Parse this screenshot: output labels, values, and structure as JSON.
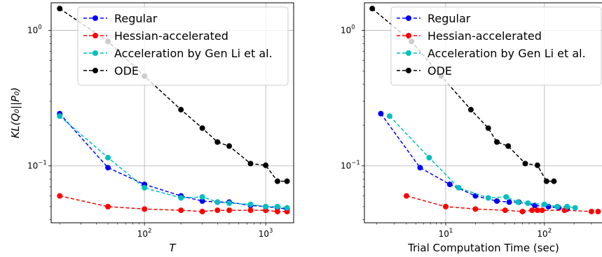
{
  "chart_data": [
    {
      "type": "line",
      "xlabel": "T",
      "ylabel": "KL(Q₀||P₀)",
      "xscale": "log",
      "yscale": "log",
      "xlim": [
        17,
        1700
      ],
      "ylim": [
        0.038,
        1.6
      ],
      "x_ticks": [
        {
          "value": 100,
          "base": "10",
          "exp": "2"
        },
        {
          "value": 1000,
          "base": "10",
          "exp": "3"
        }
      ],
      "y_ticks": [
        {
          "value": 1,
          "base": "10",
          "exp": "0"
        },
        {
          "value": 0.1,
          "base": "10",
          "exp": "−1"
        }
      ],
      "grid": true,
      "legend_position": "top-right",
      "series": [
        {
          "name": "Regular",
          "color": "#0000ff",
          "x": [
            20,
            50,
            100,
            200,
            300,
            400,
            500,
            750,
            1000,
            1250,
            1500
          ],
          "y": [
            0.243,
            0.097,
            0.073,
            0.06,
            0.055,
            0.054,
            0.054,
            0.051,
            0.05,
            0.049,
            0.048
          ]
        },
        {
          "name": "Hessian-accelerated",
          "color": "#ff0000",
          "x": [
            20,
            50,
            100,
            200,
            300,
            400,
            500,
            750,
            1000,
            1250,
            1500
          ],
          "y": [
            0.06,
            0.05,
            0.048,
            0.047,
            0.046,
            0.047,
            0.047,
            0.047,
            0.047,
            0.046,
            0.046
          ]
        },
        {
          "name": "Acceleration by Gen Li et al.",
          "color": "#00bfbf",
          "x": [
            20,
            50,
            100,
            200,
            300,
            400,
            500,
            750,
            1000,
            1250,
            1500
          ],
          "y": [
            0.233,
            0.115,
            0.069,
            0.058,
            0.059,
            0.054,
            0.053,
            0.052,
            0.05,
            0.05,
            0.049
          ]
        },
        {
          "name": "ODE",
          "color": "#000000",
          "x": [
            20,
            50,
            100,
            200,
            300,
            400,
            500,
            750,
            1000,
            1250,
            1500
          ],
          "y": [
            1.45,
            0.83,
            0.46,
            0.26,
            0.19,
            0.15,
            0.14,
            0.104,
            0.101,
            0.077,
            0.077
          ]
        }
      ]
    },
    {
      "type": "line",
      "xlabel": "Trial Computation Time (sec)",
      "ylabel": "",
      "xscale": "log",
      "yscale": "log",
      "xlim": [
        1.5,
        390
      ],
      "ylim": [
        0.038,
        1.6
      ],
      "x_ticks": [
        {
          "value": 10,
          "base": "10",
          "exp": "1"
        },
        {
          "value": 100,
          "base": "10",
          "exp": "2"
        }
      ],
      "y_ticks": [
        {
          "value": 1,
          "base": "10",
          "exp": "0"
        },
        {
          "value": 0.1,
          "base": "10",
          "exp": "−1"
        }
      ],
      "grid": true,
      "legend_position": "top-right",
      "series": [
        {
          "name": "Regular",
          "color": "#0000ff",
          "x": [
            2.2,
            5.5,
            11,
            20,
            33,
            44,
            55,
            80,
            110,
            140,
            170
          ],
          "y": [
            0.243,
            0.097,
            0.073,
            0.06,
            0.055,
            0.054,
            0.054,
            0.051,
            0.05,
            0.049,
            0.048
          ]
        },
        {
          "name": "Hessian-accelerated",
          "color": "#ff0000",
          "x": [
            4,
            10,
            20,
            40,
            60,
            75,
            85,
            95,
            160,
            300,
            350
          ],
          "y": [
            0.06,
            0.05,
            0.048,
            0.047,
            0.046,
            0.047,
            0.047,
            0.047,
            0.047,
            0.046,
            0.046
          ]
        },
        {
          "name": "Acceleration by Gen Li et al.",
          "color": "#00bfbf",
          "x": [
            2.7,
            6.8,
            13.5,
            27,
            41,
            54,
            68,
            100,
            135,
            170,
            205
          ],
          "y": [
            0.233,
            0.115,
            0.069,
            0.058,
            0.059,
            0.054,
            0.053,
            0.052,
            0.05,
            0.05,
            0.049
          ]
        },
        {
          "name": "ODE",
          "color": "#000000",
          "x": [
            1.8,
            4.5,
            9,
            18,
            27,
            33,
            43,
            64,
            85,
            105,
            125
          ],
          "y": [
            1.45,
            0.83,
            0.46,
            0.26,
            0.19,
            0.15,
            0.14,
            0.104,
            0.101,
            0.077,
            0.077
          ]
        }
      ]
    }
  ]
}
